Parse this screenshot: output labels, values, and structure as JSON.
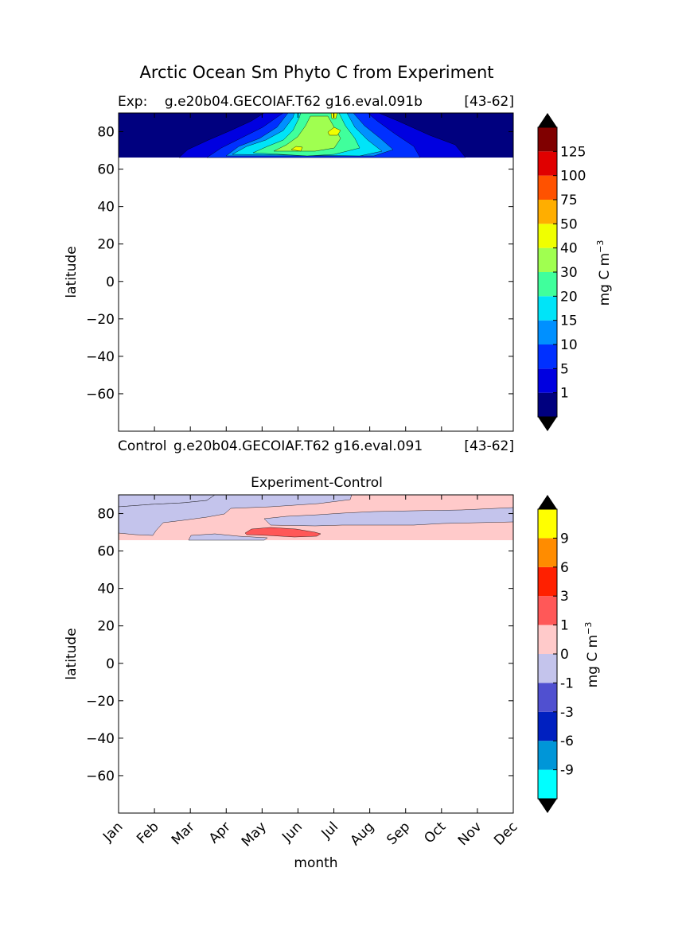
{
  "figure": {
    "title": "Arctic Ocean Sm Phyto C from Experiment",
    "xlabel": "month",
    "months": [
      "Jan",
      "Feb",
      "Mar",
      "Apr",
      "May",
      "Jun",
      "Jul",
      "Aug",
      "Sep",
      "Oct",
      "Nov",
      "Dec"
    ]
  },
  "chart_data": [
    {
      "type": "heatmap",
      "panel": "experiment",
      "label_left": "Exp:    g.e20b04.GECOIAF.T62 g16.eval.091b",
      "label_right": "[43-62]",
      "xlabel": "",
      "ylabel": "latitude",
      "yticks": [
        80,
        60,
        40,
        20,
        0,
        -20,
        -40,
        -60
      ],
      "ylim": [
        -80,
        90
      ],
      "data_lat_range": [
        66,
        90
      ],
      "colorbar": {
        "units": "mg C m",
        "units_exp": "−3",
        "levels": [
          "1",
          "5",
          "10",
          "15",
          "20",
          "30",
          "40",
          "50",
          "75",
          "100",
          "125"
        ],
        "colors": [
          "#00007f",
          "#0000e0",
          "#0030ff",
          "#0090ff",
          "#00e4f8",
          "#40ff9c",
          "#a0ff50",
          "#f0ff00",
          "#ffae00",
          "#ff5200",
          "#e00000",
          "#800000"
        ],
        "extend": "both"
      }
    },
    {
      "type": "heatmap",
      "panel": "control",
      "label_left": "Control",
      "label_mid": "g.e20b04.GECOIAF.T62 g16.eval.091",
      "label_right": "[43-62]"
    },
    {
      "type": "heatmap",
      "panel": "difference",
      "title": "Experiment-Control",
      "xlabel": "month",
      "ylabel": "latitude",
      "yticks": [
        80,
        60,
        40,
        20,
        0,
        -20,
        -40,
        -60
      ],
      "ylim": [
        -80,
        90
      ],
      "data_lat_range": [
        66,
        90
      ],
      "colorbar": {
        "units": "mg C m",
        "units_exp": "−3",
        "levels": [
          "-9",
          "-6",
          "-3",
          "-1",
          "0",
          "1",
          "3",
          "6",
          "9"
        ],
        "colors": [
          "#00ffff",
          "#0096d8",
          "#0020c0",
          "#5050d0",
          "#c4c4ec",
          "#ffcaca",
          "#ff5858",
          "#ff2000",
          "#ff8c00",
          "#ffff00"
        ],
        "extend": "both"
      }
    }
  ]
}
